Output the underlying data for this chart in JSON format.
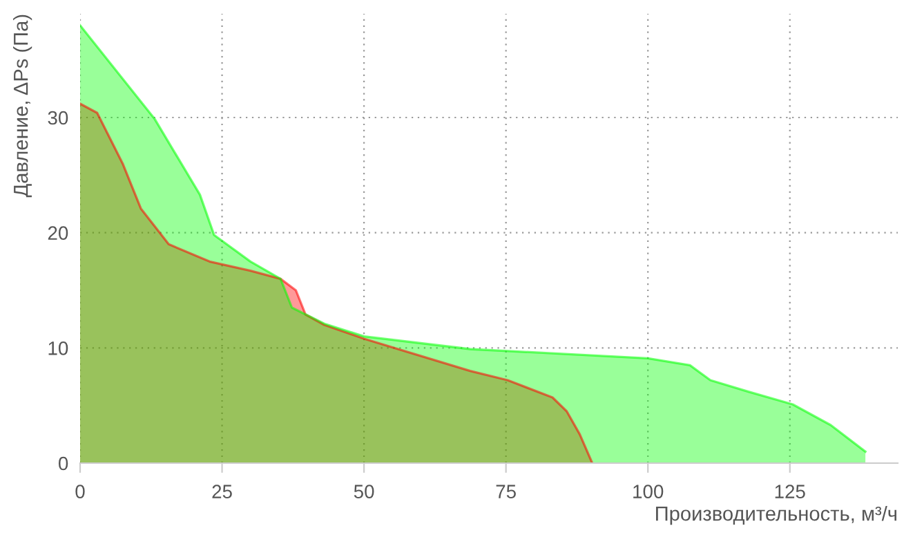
{
  "chart_data": {
    "type": "area",
    "xlabel": "Производительность, м³/ч",
    "ylabel": "Давление, ΔPs (Па)",
    "xlim": [
      0,
      144
    ],
    "ylim": [
      0,
      39
    ],
    "xticks": [
      0,
      25,
      50,
      75,
      100,
      125
    ],
    "yticks": [
      0,
      10,
      20,
      30
    ],
    "grid": true,
    "series": [
      {
        "color": "#ff0000",
        "x": [
          0,
          3,
          7.5,
          10.7,
          15.6,
          22.8,
          30,
          35.3,
          38,
          39.7,
          43,
          50,
          68.7,
          75.3,
          83.2,
          85.7,
          88,
          90.2
        ],
        "values": [
          31.2,
          30.4,
          26,
          22.1,
          19,
          17.5,
          16.7,
          16,
          15,
          12.9,
          12,
          10.8,
          8,
          7.2,
          5.7,
          4.5,
          2.5,
          0
        ]
      },
      {
        "color": "#00ff00",
        "x": [
          0,
          13.1,
          21.1,
          23.6,
          30,
          35.3,
          37.3,
          43,
          50,
          68.7,
          100,
          107.4,
          111,
          117.7,
          125.5,
          132.2,
          138.3
        ],
        "values": [
          38,
          29.9,
          23.3,
          19.8,
          17.5,
          16,
          13.5,
          12.1,
          11,
          9.9,
          9.1,
          8.5,
          7.2,
          6.2,
          5.1,
          3.3,
          1
        ]
      }
    ]
  }
}
